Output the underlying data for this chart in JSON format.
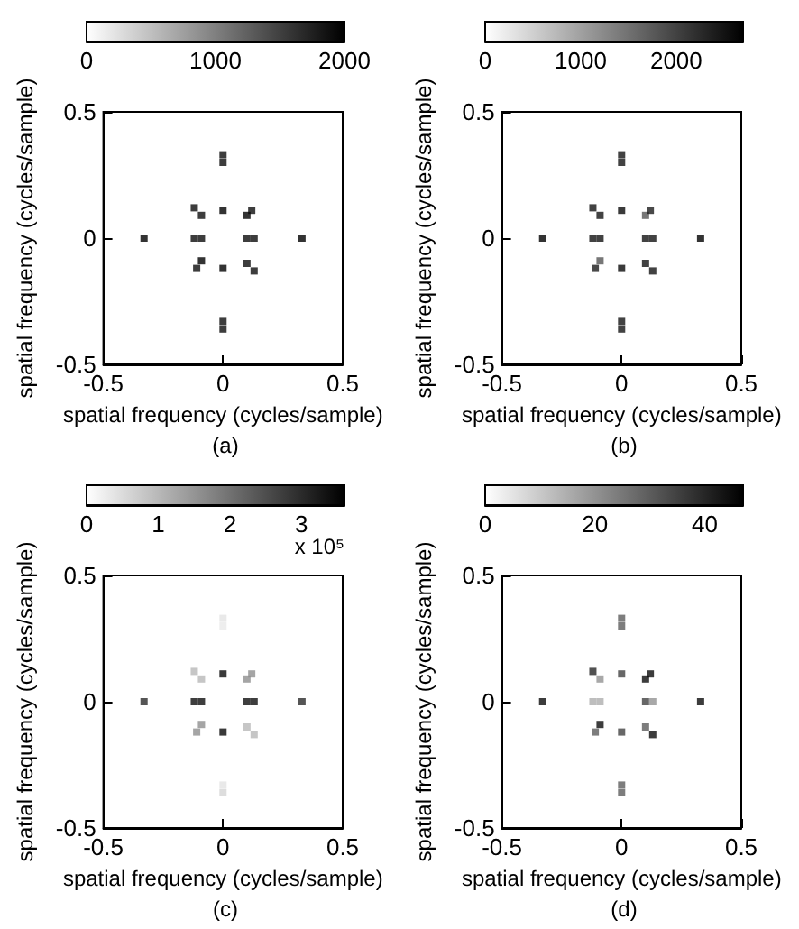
{
  "chart_data": [
    {
      "type": "scatter",
      "title": "(a)",
      "xlabel": "spatial frequency (cycles/sample)",
      "ylabel": "spatial frequency (cycles/sample)",
      "marker": "square",
      "xlim": [
        -0.5,
        0.5
      ],
      "ylim": [
        -0.5,
        0.5
      ],
      "xticks": [
        -0.5,
        0,
        0.5
      ],
      "yticks": [
        -0.5,
        0,
        0.5
      ],
      "clim": [
        0,
        2000
      ],
      "cticks": [
        0,
        1000,
        2000
      ],
      "x": [
        0,
        0,
        0,
        0,
        0,
        0,
        -0.33,
        0.33,
        -0.12,
        -0.09,
        0.1,
        0.13,
        -0.12,
        -0.09,
        0.1,
        0.12,
        -0.09,
        -0.11,
        0.1,
        0.13
      ],
      "values": [
        0.33,
        0.3,
        0.11,
        -0.12,
        -0.33,
        -0.36,
        0,
        0,
        0,
        0,
        0,
        0,
        0.12,
        0.09,
        0.09,
        0.11,
        -0.09,
        -0.12,
        -0.1,
        -0.13
      ],
      "cvalues": [
        1900,
        1900,
        2000,
        2000,
        1900,
        1900,
        2000,
        2000,
        1900,
        1900,
        1900,
        1900,
        1900,
        1900,
        2000,
        1900,
        2000,
        1900,
        1900,
        1900
      ]
    },
    {
      "type": "scatter",
      "title": "(b)",
      "xlabel": "spatial frequency (cycles/sample)",
      "ylabel": "spatial frequency (cycles/sample)",
      "marker": "square",
      "xlim": [
        -0.5,
        0.5
      ],
      "ylim": [
        -0.5,
        0.5
      ],
      "xticks": [
        -0.5,
        0,
        0.5
      ],
      "yticks": [
        -0.5,
        0,
        0.5
      ],
      "clim": [
        0,
        2700
      ],
      "cticks": [
        0,
        1000,
        2000
      ],
      "x": [
        0,
        0,
        0,
        0,
        0,
        0,
        -0.33,
        0.33,
        -0.12,
        -0.09,
        0.1,
        0.13,
        -0.12,
        -0.09,
        0.1,
        0.12,
        -0.09,
        -0.11,
        0.1,
        0.13
      ],
      "values": [
        0.33,
        0.3,
        0.11,
        -0.12,
        -0.33,
        -0.36,
        0,
        0,
        0,
        0,
        0,
        0,
        0.12,
        0.09,
        0.09,
        0.11,
        -0.09,
        -0.12,
        -0.1,
        -0.13
      ],
      "cvalues": [
        2500,
        2500,
        2600,
        2600,
        2500,
        2500,
        2700,
        2700,
        2500,
        2500,
        2500,
        2500,
        2500,
        2500,
        1800,
        2400,
        1800,
        2400,
        2500,
        2500
      ]
    },
    {
      "type": "scatter",
      "title": "(c)",
      "xlabel": "spatial frequency (cycles/sample)",
      "ylabel": "spatial frequency (cycles/sample)",
      "marker": "square",
      "xlim": [
        -0.5,
        0.5
      ],
      "ylim": [
        -0.5,
        0.5
      ],
      "xticks": [
        -0.5,
        0,
        0.5
      ],
      "yticks": [
        -0.5,
        0,
        0.5
      ],
      "clim": [
        0,
        3.6
      ],
      "cticks": [
        0,
        1,
        2,
        3
      ],
      "annotations": [
        "x 10⁵"
      ],
      "x": [
        0,
        0,
        0,
        0,
        0,
        0,
        -0.33,
        0.33,
        -0.12,
        -0.09,
        0.1,
        0.13,
        -0.12,
        -0.09,
        0.1,
        0.12,
        -0.09,
        -0.11,
        0.1,
        0.13
      ],
      "values": [
        0.33,
        0.3,
        0.11,
        -0.12,
        -0.33,
        -0.36,
        0,
        0,
        0,
        0,
        0,
        0,
        0.12,
        0.09,
        0.09,
        0.11,
        -0.09,
        -0.12,
        -0.1,
        -0.13
      ],
      "cvalues": [
        0.4,
        0.3,
        3.5,
        3.5,
        0.4,
        0.6,
        3,
        3,
        3.4,
        3.4,
        3.4,
        3.4,
        1,
        1,
        1.6,
        1.6,
        1.6,
        1.6,
        1,
        1
      ]
    },
    {
      "type": "scatter",
      "title": "(d)",
      "xlabel": "spatial frequency (cycles/sample)",
      "ylabel": "spatial frequency (cycles/sample)",
      "marker": "square",
      "xlim": [
        -0.5,
        0.5
      ],
      "ylim": [
        -0.5,
        0.5
      ],
      "xticks": [
        -0.5,
        0,
        0.5
      ],
      "yticks": [
        -0.5,
        0,
        0.5
      ],
      "clim": [
        0,
        47
      ],
      "cticks": [
        0,
        20,
        40
      ],
      "x": [
        0,
        0,
        0,
        0,
        0,
        0,
        -0.33,
        0.33,
        -0.12,
        -0.09,
        0.1,
        0.13,
        -0.12,
        -0.09,
        0.1,
        0.12,
        -0.09,
        -0.11,
        0.1,
        0.13
      ],
      "values": [
        0.33,
        0.3,
        0.11,
        -0.12,
        -0.33,
        -0.36,
        0,
        0,
        0,
        0,
        0,
        0,
        0.12,
        0.09,
        0.09,
        0.11,
        -0.09,
        -0.12,
        -0.1,
        -0.13
      ],
      "cvalues": [
        30,
        30,
        35,
        35,
        30,
        30,
        45,
        45,
        15,
        15,
        35,
        20,
        40,
        20,
        45,
        45,
        45,
        30,
        30,
        45
      ]
    }
  ]
}
